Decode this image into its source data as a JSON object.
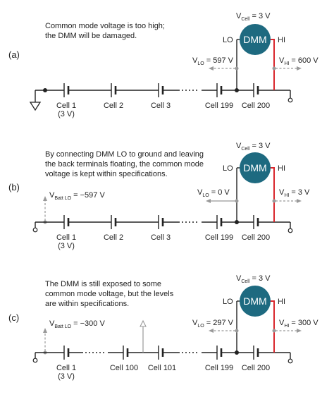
{
  "panels": [
    {
      "letter": "(a)",
      "note": [
        "Common mode voltage is too high;",
        "the DMM will be damaged."
      ],
      "meter": "DMM",
      "lo": "LO",
      "hi": "HI",
      "vcell": {
        "main": "V",
        "sub": "Cell",
        "rest": " = 3 V"
      },
      "vlo": {
        "main": "V",
        "sub": "LO",
        "rest": " = 597 V"
      },
      "vhi": {
        "main": "V",
        "sub": "HI",
        "rest": " = 600 V"
      },
      "vbatt": null,
      "cells": [
        "Cell 1",
        "Cell 2",
        "Cell 3",
        "Cell 199",
        "Cell 200"
      ],
      "cell1_sub": "(3 V)"
    },
    {
      "letter": "(b)",
      "note": [
        "By connecting DMM LO to ground and leaving",
        "the back terminals floating, the common mode",
        "voltage is kept within specifications."
      ],
      "meter": "DMM",
      "lo": "LO",
      "hi": "HI",
      "vcell": {
        "main": "V",
        "sub": "Cell",
        "rest": " = 3 V"
      },
      "vlo": {
        "main": "V",
        "sub": "LO",
        "rest": " = 0 V"
      },
      "vhi": {
        "main": "V",
        "sub": "HI",
        "rest": " = 3 V"
      },
      "vbatt": {
        "main": "V",
        "sub": "Batt LO",
        "rest": " = −597 V"
      },
      "cells": [
        "Cell 1",
        "Cell 2",
        "Cell 3",
        "Cell 199",
        "Cell 200"
      ],
      "cell1_sub": "(3 V)"
    },
    {
      "letter": "(c)",
      "note": [
        "The DMM is still exposed to some",
        "common mode voltage, but the levels",
        "are within specifications."
      ],
      "meter": "DMM",
      "lo": "LO",
      "hi": "HI",
      "vcell": {
        "main": "V",
        "sub": "Cell",
        "rest": " = 3 V"
      },
      "vlo": {
        "main": "V",
        "sub": "LO",
        "rest": " = 297 V"
      },
      "vhi": {
        "main": "V",
        "sub": "HI",
        "rest": " = 300 V"
      },
      "vbatt": {
        "main": "V",
        "sub": "Batt LO",
        "rest": " = −300 V"
      },
      "cells": [
        "Cell 1",
        "Cell 100",
        "Cell 101",
        "Cell 199",
        "Cell 200"
      ],
      "cell1_sub": "(3 V)"
    }
  ]
}
